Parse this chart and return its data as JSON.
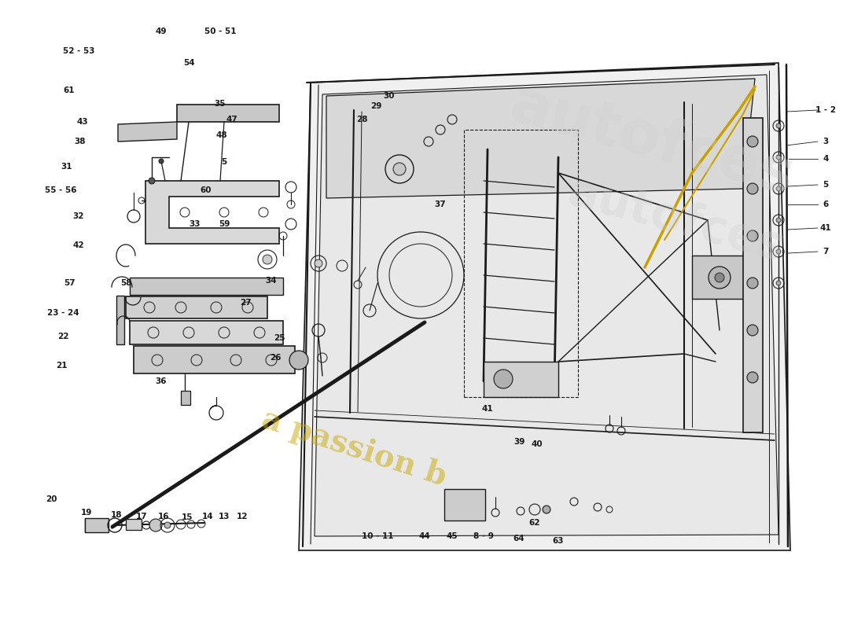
{
  "bg_color": "#ffffff",
  "line_color": "#1a1a1a",
  "label_color": "#1a1a1a",
  "label_fontsize": 7.5,
  "watermark1_text": "a passion b",
  "watermark1_color": "#c8a800",
  "watermark2_color": "#b8b8b8",
  "figsize": [
    11.0,
    8.0
  ],
  "dpi": 100
}
